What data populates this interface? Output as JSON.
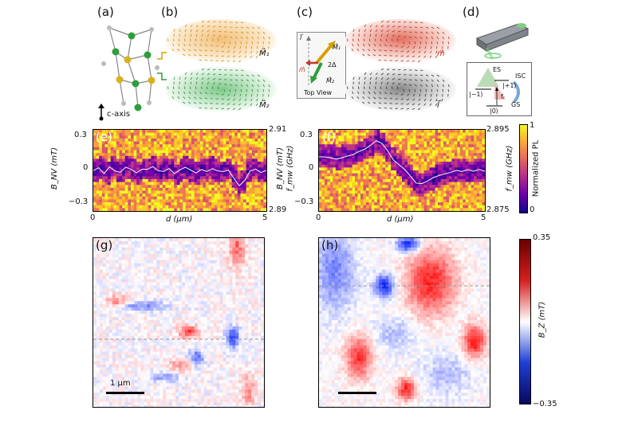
{
  "panel_labels": {
    "a": "(a)",
    "b": "(b)",
    "c": "(c)",
    "d": "(d)",
    "e": "(e)",
    "f": "(f)",
    "g": "(g)",
    "h": "(h)"
  },
  "panel_a": {
    "caxis": "c-axis"
  },
  "panel_b": {
    "m1": "M⃗₁",
    "m2": "M⃗₂"
  },
  "panel_c": {
    "m_label": "m⃗",
    "l_label": "l⃗",
    "inset": {
      "l": "l⃗",
      "m": "m⃗",
      "M1": "M⃗₁",
      "M2": "M⃗₂",
      "angle": "2Δ",
      "caption": "Top View"
    }
  },
  "panel_d": {
    "ES": "ES",
    "ISC": "ISC",
    "GS": "GS",
    "plus1": "|+1⟩",
    "minus1": "|−1⟩",
    "zero": "|0⟩",
    "fr": "fᵣ"
  },
  "panel_e": {
    "y_left_label": "B_NV (mT)",
    "y_right_label": "f_mw (GHz)",
    "x_label": "d (μm)",
    "y_ticks": [
      "0.3",
      "0",
      "−0.3"
    ],
    "right_ticks": [
      "2.91",
      "2.89"
    ],
    "x_ticks": [
      "0",
      "5"
    ]
  },
  "panel_f": {
    "y_left_label": "B_NV (mT)",
    "y_right_label": "f_mw (GHz)",
    "x_label": "d (μm)",
    "y_ticks": [
      "0.3",
      "0",
      "−0.3"
    ],
    "right_ticks": [
      "2.895",
      "2.875"
    ],
    "x_ticks": [
      "0",
      "5"
    ]
  },
  "colorbar_pl": {
    "label": "Normalized PL",
    "max": "1",
    "min": "0"
  },
  "colorbar_bz": {
    "label": "B_Z (mT)",
    "max": "0.35",
    "min": "−0.35"
  },
  "panel_g": {
    "scalebar": "1 μm"
  },
  "chart_data": [
    {
      "type": "heatmap",
      "id": "e",
      "xlabel": "d (μm)",
      "ylabel": "B_NV (mT)",
      "y2label": "f_mw (GHz)",
      "xlim": [
        0,
        5
      ],
      "ylim": [
        -0.3,
        0.3
      ],
      "y2lim": [
        2.89,
        2.91
      ],
      "trace_y": [
        0.0,
        0.02,
        -0.02,
        0.03,
        0.0,
        -0.01,
        0.02,
        0.0,
        -0.02,
        0.01,
        0.0,
        0.02,
        -0.01,
        0.0,
        0.01,
        -0.03,
        0.0,
        0.02,
        0.0,
        -0.02,
        0.01,
        0.0,
        0.02,
        0.0,
        -0.01,
        0.01,
        -0.05,
        -0.12,
        -0.08,
        0.0,
        0.01,
        -0.01,
        0.0
      ]
    },
    {
      "type": "heatmap",
      "id": "f",
      "xlabel": "d (μm)",
      "ylabel": "B_NV (mT)",
      "y2label": "f_mw (GHz)",
      "xlim": [
        0,
        5
      ],
      "ylim": [
        -0.3,
        0.3
      ],
      "y2lim": [
        2.875,
        2.895
      ],
      "trace_y": [
        0.1,
        0.1,
        0.1,
        0.08,
        0.1,
        0.11,
        0.12,
        0.14,
        0.16,
        0.18,
        0.22,
        0.2,
        0.14,
        0.08,
        0.04,
        0.0,
        -0.05,
        -0.09,
        -0.1,
        -0.08,
        -0.06,
        -0.04,
        -0.02,
        -0.01,
        0.0,
        0.0,
        0.0,
        -0.01,
        0.0,
        0.0
      ]
    }
  ]
}
